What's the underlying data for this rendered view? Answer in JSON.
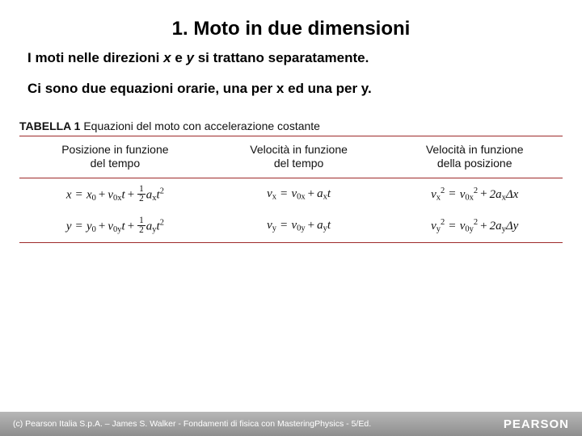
{
  "title": "1. Moto in due dimensioni",
  "line1": {
    "prefix": "I moti nelle direzioni ",
    "x": "x",
    "mid": "  e ",
    "y": "y",
    "suffix": " si trattano separatamente."
  },
  "line2": "Ci sono due equazioni orarie, una per x ed una per y.",
  "table": {
    "caption_label": "TABELLA 1",
    "caption_text": "  Equazioni del moto con accelerazione costante",
    "headers": {
      "col1_l1": "Posizione in funzione",
      "col1_l2": "del tempo",
      "col2_l1": "Velocità in funzione",
      "col2_l2": "del tempo",
      "col3_l1": "Velocità in funzione",
      "col3_l2": "della posizione"
    },
    "style": {
      "border_color": "#9e2a2a",
      "header_fontsize": 14,
      "cell_fontsize": 15,
      "cell_font": "Georgia"
    }
  },
  "footer": {
    "text": "(c) Pearson Italia S.p.A. – James S. Walker - Fondamenti di fisica con MasteringPhysics - 5/Ed.",
    "brand": "PEARSON"
  },
  "colors": {
    "background": "#ffffff",
    "text": "#000000",
    "footer_gradient_top": "#b7b7b7",
    "footer_gradient_bottom": "#8e8e8e",
    "footer_text": "#ffffff"
  }
}
